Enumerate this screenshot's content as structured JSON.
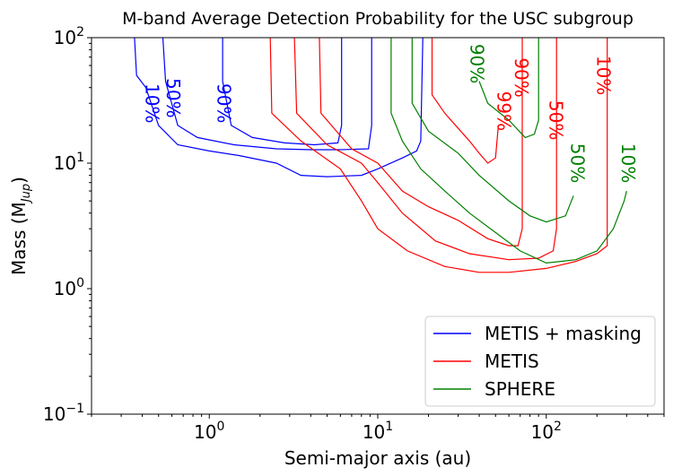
{
  "chart_data": {
    "type": "line",
    "title": "M-band Average Detection Probability for the USC subgroup",
    "xlabel": "Semi-major axis (au)",
    "ylabel": "Mass (M",
    "ylabel_sub": "Jup",
    "ylabel_close": ")",
    "xscale": "log",
    "yscale": "log",
    "xlim": [
      0.2,
      500
    ],
    "ylim": [
      0.1,
      100
    ],
    "x_ticks": [
      {
        "value": 1,
        "base": "10",
        "exp": "0"
      },
      {
        "value": 10,
        "base": "10",
        "exp": "1"
      },
      {
        "value": 100,
        "base": "10",
        "exp": "2"
      }
    ],
    "y_ticks": [
      {
        "value": 0.1,
        "base": "10",
        "exp": "−1"
      },
      {
        "value": 1,
        "base": "10",
        "exp": "0"
      },
      {
        "value": 10,
        "base": "10",
        "exp": "1"
      },
      {
        "value": 100,
        "base": "10",
        "exp": "2"
      }
    ],
    "grid": false,
    "legend_position": "lower-right",
    "series": [
      {
        "name": "METIS + masking",
        "color": "#0000ff",
        "contours": [
          {
            "label": "10%",
            "label_at": [
              0.45,
              30
            ],
            "points": [
              [
                0.36,
                100
              ],
              [
                0.37,
                50
              ],
              [
                0.42,
                40
              ],
              [
                0.5,
                20
              ],
              [
                0.65,
                14
              ],
              [
                1.0,
                12.5
              ],
              [
                1.5,
                11.5
              ],
              [
                2.5,
                10
              ],
              [
                3.5,
                8
              ],
              [
                5,
                7.8
              ],
              [
                8,
                8
              ],
              [
                10,
                9
              ],
              [
                14,
                11
              ],
              [
                17,
                12.5
              ],
              [
                18,
                15
              ],
              [
                18.5,
                100
              ]
            ]
          },
          {
            "label": "50%",
            "label_at": [
              0.6,
              33
            ],
            "points": [
              [
                0.53,
                100
              ],
              [
                0.55,
                45
              ],
              [
                0.65,
                20
              ],
              [
                0.85,
                16
              ],
              [
                1.4,
                14
              ],
              [
                2.5,
                13
              ],
              [
                4,
                12.8
              ],
              [
                6,
                12.8
              ],
              [
                8.8,
                13
              ],
              [
                9.2,
                20
              ],
              [
                9.2,
                100
              ]
            ]
          },
          {
            "label": "90%",
            "label_at": [
              1.2,
              30
            ],
            "points": [
              [
                1.2,
                100
              ],
              [
                1.2,
                45
              ],
              [
                1.35,
                20
              ],
              [
                1.8,
                16
              ],
              [
                2.8,
                14.5
              ],
              [
                4.2,
                14
              ],
              [
                5.8,
                14.5
              ],
              [
                6.1,
                20
              ],
              [
                6.1,
                100
              ]
            ]
          }
        ]
      },
      {
        "name": "METIS",
        "color": "#ff0000",
        "contours": [
          {
            "label": "10%",
            "label_at": [
              215,
              50
            ],
            "points": [
              [
                2.3,
                100
              ],
              [
                2.35,
                25
              ],
              [
                3.5,
                15
              ],
              [
                6,
                9
              ],
              [
                8,
                5
              ],
              [
                10,
                3
              ],
              [
                15,
                2
              ],
              [
                25,
                1.5
              ],
              [
                40,
                1.35
              ],
              [
                60,
                1.35
              ],
              [
                100,
                1.45
              ],
              [
                150,
                1.65
              ],
              [
                200,
                1.9
              ],
              [
                230,
                2.2
              ],
              [
                230,
                100
              ]
            ]
          },
          {
            "label": "50%",
            "label_at": [
              112,
              22
            ],
            "points": [
              [
                3.2,
                100
              ],
              [
                3.3,
                25
              ],
              [
                5,
                14
              ],
              [
                8,
                10
              ],
              [
                10,
                7
              ],
              [
                14,
                4
              ],
              [
                22,
                2.4
              ],
              [
                35,
                1.9
              ],
              [
                60,
                1.7
              ],
              [
                90,
                1.75
              ],
              [
                110,
                2
              ],
              [
                115,
                3
              ],
              [
                115,
                100
              ]
            ]
          },
          {
            "label": "90%",
            "label_at": [
              70,
              48
            ],
            "points": [
              [
                4.5,
                100
              ],
              [
                4.6,
                25
              ],
              [
                7,
                13
              ],
              [
                10,
                10
              ],
              [
                14,
                6
              ],
              [
                20,
                4.5
              ],
              [
                30,
                3.5
              ],
              [
                45,
                2.5
              ],
              [
                60,
                2.2
              ],
              [
                68,
                2.2
              ],
              [
                72,
                3
              ],
              [
                72,
                100
              ]
            ]
          },
          {
            "label": "99%",
            "label_at": [
              55,
              26
            ],
            "points": [
              [
                21,
                100
              ],
              [
                21,
                35
              ],
              [
                25,
                25
              ],
              [
                35,
                15
              ],
              [
                40,
                12
              ],
              [
                45,
                10
              ],
              [
                50,
                11
              ],
              [
                52,
                20
              ]
            ]
          }
        ]
      },
      {
        "name": "SPHERE",
        "color": "#008000",
        "contours": [
          {
            "label": "10%",
            "label_at": [
              300,
              10
            ],
            "points": [
              [
                12,
                100
              ],
              [
                12,
                25
              ],
              [
                14,
                15
              ],
              [
                18,
                9
              ],
              [
                25,
                6
              ],
              [
                35,
                4
              ],
              [
                50,
                2.8
              ],
              [
                70,
                2
              ],
              [
                100,
                1.6
              ],
              [
                150,
                1.7
              ],
              [
                200,
                2
              ],
              [
                250,
                3
              ],
              [
                290,
                5
              ],
              [
                300,
                6
              ]
            ]
          },
          {
            "label": "50%",
            "label_at": [
              150,
              10
            ],
            "points": [
              [
                16,
                100
              ],
              [
                16,
                30
              ],
              [
                20,
                18
              ],
              [
                30,
                12
              ],
              [
                40,
                8
              ],
              [
                60,
                5
              ],
              [
                80,
                3.8
              ],
              [
                100,
                3.4
              ],
              [
                130,
                3.8
              ],
              [
                145,
                5.5
              ]
            ]
          },
          {
            "label": "90%",
            "label_at": [
              38,
              62
            ],
            "points": [
              [
                40,
                45
              ],
              [
                45,
                30
              ],
              [
                60,
                22
              ],
              [
                75,
                16
              ],
              [
                85,
                17
              ],
              [
                90,
                22
              ],
              [
                90,
                100
              ]
            ]
          }
        ]
      }
    ]
  }
}
